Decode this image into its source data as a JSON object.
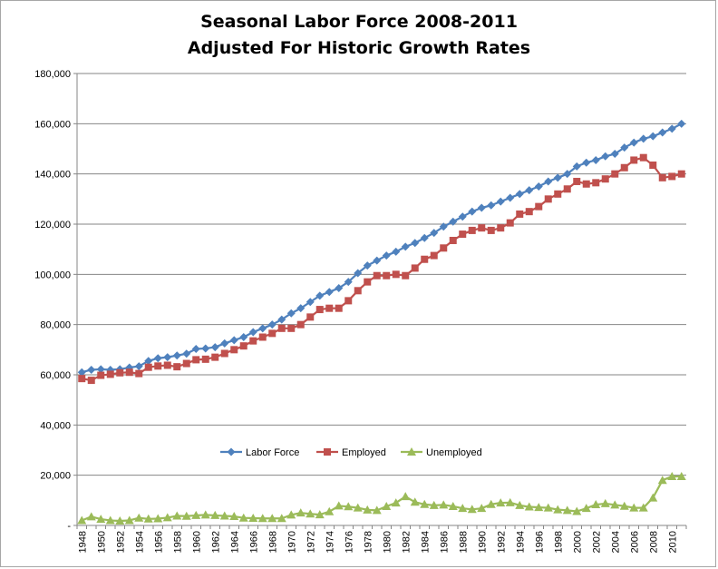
{
  "chart_data": {
    "type": "line",
    "title": "Seasonal Labor Force 2008-2011",
    "subtitle": "Adjusted For Historic Growth Rates",
    "xlabel": "",
    "ylabel": "",
    "ylim": [
      0,
      180000
    ],
    "yticks": [
      0,
      20000,
      40000,
      60000,
      80000,
      100000,
      120000,
      140000,
      160000,
      180000
    ],
    "ytick_labels": [
      "-",
      "20,000",
      "40,000",
      "60,000",
      "80,000",
      "100,000",
      "120,000",
      "140,000",
      "160,000",
      "180,000"
    ],
    "xtick_labels": [
      "1948",
      "1950",
      "1952",
      "1954",
      "1956",
      "1958",
      "1960",
      "1962",
      "1964",
      "1966",
      "1968",
      "1970",
      "1972",
      "1974",
      "1976",
      "1978",
      "1980",
      "1982",
      "1984",
      "1986",
      "1988",
      "1990",
      "1992",
      "1994",
      "1996",
      "1998",
      "2000",
      "2002",
      "2004",
      "2006",
      "2008",
      "2010"
    ],
    "grid": "horizontal",
    "legend_position": "bottom-center",
    "x": [
      1948,
      1949,
      1950,
      1951,
      1952,
      1953,
      1954,
      1955,
      1956,
      1957,
      1958,
      1959,
      1960,
      1961,
      1962,
      1963,
      1964,
      1965,
      1966,
      1967,
      1968,
      1969,
      1970,
      1971,
      1972,
      1973,
      1974,
      1975,
      1976,
      1977,
      1978,
      1979,
      1980,
      1981,
      1982,
      1983,
      1984,
      1985,
      1986,
      1987,
      1988,
      1989,
      1990,
      1991,
      1992,
      1993,
      1994,
      1995,
      1996,
      1997,
      1998,
      1999,
      2000,
      2001,
      2002,
      2003,
      2004,
      2005,
      2006,
      2007,
      2008,
      2009,
      2010,
      2011
    ],
    "series": [
      {
        "name": "Labor Force",
        "color": "#4f81bd",
        "marker": "diamond",
        "values": [
          61000,
          62000,
          62200,
          62000,
          62200,
          62900,
          63400,
          65500,
          66600,
          67000,
          67700,
          68400,
          70300,
          70500,
          71000,
          72500,
          73800,
          75000,
          77000,
          78500,
          80000,
          82000,
          84500,
          86500,
          89000,
          91500,
          93000,
          94500,
          97000,
          100500,
          103500,
          105500,
          107500,
          109000,
          111000,
          112500,
          114500,
          116500,
          119000,
          121000,
          123000,
          125000,
          126500,
          127500,
          129000,
          130500,
          132000,
          133500,
          135000,
          137000,
          138500,
          140000,
          143000,
          144500,
          145500,
          147000,
          148000,
          150500,
          152500,
          154000,
          155000,
          156500,
          158000,
          160000
        ]
      },
      {
        "name": "Employed",
        "color": "#c0504d",
        "marker": "square",
        "values": [
          58500,
          57800,
          59800,
          60200,
          60800,
          61000,
          60500,
          63000,
          63500,
          63800,
          63200,
          64500,
          66000,
          66200,
          67000,
          68500,
          70000,
          71500,
          73500,
          75000,
          76500,
          78500,
          78500,
          80000,
          83000,
          86000,
          86500,
          86500,
          89500,
          93500,
          97000,
          99500,
          99500,
          100000,
          99500,
          102500,
          106000,
          107500,
          110500,
          113500,
          116000,
          117500,
          118500,
          117500,
          118500,
          120500,
          124000,
          125000,
          127000,
          130000,
          132000,
          134000,
          137000,
          136000,
          136500,
          138000,
          140000,
          142500,
          145500,
          146500,
          143500,
          138500,
          139000,
          140000
        ]
      },
      {
        "name": "Unemployed",
        "color": "#9bbb59",
        "marker": "triangle",
        "values": [
          2000,
          3500,
          2500,
          2000,
          1800,
          2000,
          3000,
          2600,
          2700,
          3100,
          3800,
          3700,
          4000,
          4200,
          4000,
          3800,
          3600,
          3000,
          2900,
          2800,
          2800,
          2800,
          4200,
          5000,
          4600,
          4300,
          5500,
          7800,
          7500,
          7000,
          6200,
          6000,
          7600,
          9000,
          11500,
          9300,
          8400,
          8000,
          8200,
          7600,
          6800,
          6400,
          6800,
          8400,
          9000,
          9100,
          8000,
          7400,
          7200,
          7000,
          6300,
          6000,
          5600,
          6800,
          8300,
          8700,
          8200,
          7700,
          7000,
          7000,
          11000,
          18000,
          19500,
          19500
        ]
      }
    ]
  }
}
